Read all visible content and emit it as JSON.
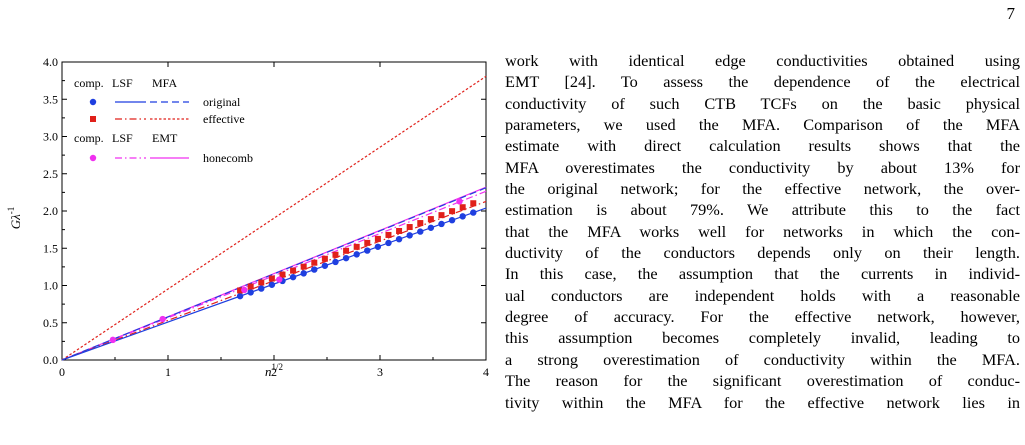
{
  "page": {
    "number": "7"
  },
  "colors": {
    "original": "#1f3fe0",
    "effective": "#e0201a",
    "honeycomb": "#f030f0",
    "axis": "#000000"
  },
  "chart_data": {
    "type": "line",
    "xlabel": "n",
    "xlabel_sup": "1/2",
    "ylabel": "Gλ",
    "ylabel_sup": "-1",
    "xlim": [
      0,
      4
    ],
    "ylim": [
      0,
      4
    ],
    "x_ticks": [
      "0",
      "1",
      "2",
      "3",
      "4"
    ],
    "y_ticks": [
      "0.0",
      "0.5",
      "1.0",
      "1.5",
      "2.0",
      "2.5",
      "3.0",
      "3.5",
      "4.0"
    ],
    "legend": {
      "placement": "top-left",
      "header1": [
        "comp.",
        "LSF",
        "MFA"
      ],
      "header2": [
        "comp.",
        "LSF",
        "EMT"
      ],
      "entries": [
        "original",
        "effective",
        "honecomb"
      ]
    },
    "series": [
      {
        "name": "original",
        "marker": "circle",
        "color": "#1f3fe0",
        "points_x": [
          1.68,
          1.78,
          1.88,
          1.98,
          2.08,
          2.18,
          2.28,
          2.38,
          2.48,
          2.58,
          2.68,
          2.78,
          2.88,
          2.98,
          3.08,
          3.18,
          3.28,
          3.38,
          3.48,
          3.58,
          3.68,
          3.78,
          3.88
        ],
        "lsf_slope": 0.51,
        "mfa_slope": 0.578
      },
      {
        "name": "effective",
        "marker": "square",
        "color": "#e0201a",
        "points_x": [
          1.68,
          1.78,
          1.88,
          1.98,
          2.08,
          2.18,
          2.28,
          2.38,
          2.48,
          2.58,
          2.68,
          2.78,
          2.88,
          2.98,
          3.08,
          3.18,
          3.28,
          3.38,
          3.48,
          3.58,
          3.68,
          3.78,
          3.88
        ],
        "lsf_slope": 0.532,
        "mfa_slope": 0.952
      },
      {
        "name": "honecomb",
        "marker": "circle",
        "color": "#f030f0",
        "points_x": [
          0.48,
          0.95,
          1.72,
          2.05,
          3.75
        ],
        "points_y": [
          0.27,
          0.55,
          0.94,
          1.08,
          2.13
        ],
        "lsf_slope": 0.566,
        "emt_slope": 0.58
      }
    ]
  },
  "text": {
    "lines": [
      "work with identical edge conductivities obtained using",
      "EMT [24].   To assess the dependence of the electrical",
      "conductivity of such CTB TCFs on the basic physical",
      "parameters, we used the MFA. Comparison of the MFA",
      "estimate with direct calculation results shows that the",
      "MFA overestimates the conductivity by about 13% for",
      "the original network; for the effective network, the over-",
      "estimation is about 79%.  We attribute this to the fact",
      "that the MFA works well for networks in which the con-",
      "ductivity of the conductors depends only on their length.",
      "In this case, the assumption that the currents in individ-",
      "ual conductors are independent holds with a reasonable",
      "degree of accuracy.  For the effective network, however,",
      "this assumption becomes completely invalid, leading to",
      "a strong overestimation of conductivity within the MFA.",
      "The reason for the significant overestimation of conduc-",
      "tivity within the MFA for the effective network lies in"
    ]
  }
}
